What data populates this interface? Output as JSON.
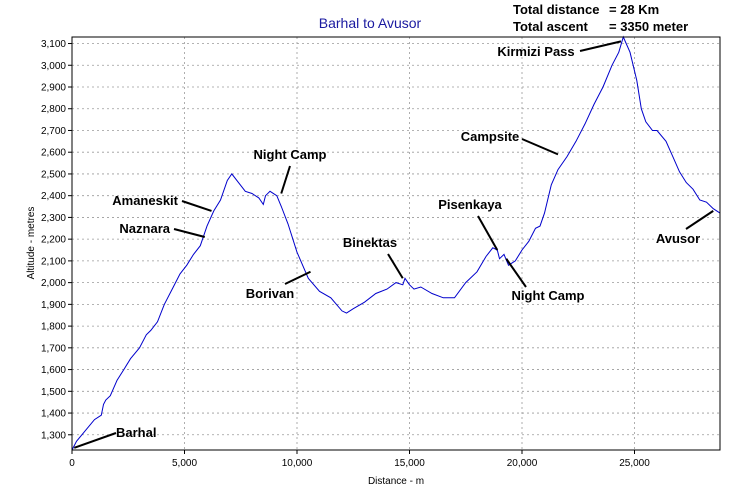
{
  "chart_data": {
    "type": "line",
    "title": "Barhal to Avusor",
    "xlabel": "Distance - m",
    "ylabel": "Altitude - metres",
    "xlim": [
      0,
      28800
    ],
    "ylim": [
      1230,
      3130
    ],
    "x_ticks": [
      0,
      5000,
      10000,
      15000,
      20000,
      25000
    ],
    "y_ticks": [
      1300,
      1400,
      1500,
      1600,
      1700,
      1800,
      1900,
      2000,
      2100,
      2200,
      2300,
      2400,
      2500,
      2600,
      2700,
      2800,
      2900,
      3000,
      3100
    ],
    "grid": true,
    "line_color": "#0000cc",
    "info": {
      "distance_label": "Total distance",
      "distance_value": "= 28 Km",
      "ascent_label": "Total ascent",
      "ascent_value": "= 3350 meter"
    },
    "series": [
      {
        "x": [
          0,
          200,
          600,
          1000,
          1300,
          1400,
          1500,
          1700,
          2000,
          2300,
          2600,
          3000,
          3300,
          3500,
          3800,
          4100,
          4500,
          4800,
          5100,
          5400,
          5700,
          6000,
          6300,
          6600,
          6900,
          7100,
          7400,
          7700,
          8000,
          8300,
          8500,
          8600,
          8800,
          9100,
          9300,
          9600,
          10000,
          10500,
          11000,
          11500,
          12000,
          12200,
          12500,
          13000,
          13500,
          14000,
          14400,
          14700,
          14800,
          15000,
          15200,
          15500,
          16000,
          16500,
          17000,
          17500,
          18000,
          18400,
          18700,
          18900,
          19000,
          19200,
          19400,
          19700,
          20000,
          20300,
          20600,
          20800,
          21000,
          21300,
          21600,
          22000,
          22400,
          22800,
          23200,
          23600,
          24000,
          24300,
          24500,
          24800,
          25100,
          25300,
          25500,
          25800,
          26000,
          26400,
          26700,
          27000,
          27300,
          27600,
          27900,
          28200,
          28500,
          28800
        ],
        "y": [
          1230,
          1270,
          1320,
          1370,
          1390,
          1440,
          1460,
          1480,
          1550,
          1600,
          1650,
          1700,
          1760,
          1780,
          1820,
          1900,
          1980,
          2040,
          2080,
          2130,
          2170,
          2260,
          2330,
          2380,
          2470,
          2500,
          2460,
          2420,
          2410,
          2390,
          2360,
          2400,
          2420,
          2400,
          2350,
          2270,
          2140,
          2020,
          1960,
          1930,
          1870,
          1860,
          1880,
          1910,
          1950,
          1970,
          2000,
          1990,
          2020,
          1990,
          1970,
          1980,
          1950,
          1930,
          1930,
          2000,
          2050,
          2120,
          2160,
          2150,
          2110,
          2130,
          2080,
          2100,
          2150,
          2190,
          2250,
          2260,
          2320,
          2450,
          2520,
          2580,
          2650,
          2730,
          2820,
          2900,
          3000,
          3060,
          3130,
          3060,
          2930,
          2800,
          2740,
          2700,
          2700,
          2650,
          2580,
          2510,
          2460,
          2430,
          2380,
          2370,
          2340,
          2320
        ]
      }
    ],
    "annotations": [
      {
        "text": "Barhal",
        "x": 100,
        "y": 1240
      },
      {
        "text": "Naznara",
        "x": 5900,
        "y": 2210
      },
      {
        "text": "Amaneskit",
        "x": 6200,
        "y": 2330
      },
      {
        "text": "Night Camp",
        "x": 9300,
        "y": 2410
      },
      {
        "text": "Borivan",
        "x": 10600,
        "y": 2050
      },
      {
        "text": "Binektas",
        "x": 14700,
        "y": 2020
      },
      {
        "text": "Pisenkaya",
        "x": 18900,
        "y": 2150
      },
      {
        "text": "Night Camp",
        "x": 19300,
        "y": 2110
      },
      {
        "text": "Campsite",
        "x": 21600,
        "y": 2590
      },
      {
        "text": "Kirmizi Pass",
        "x": 24400,
        "y": 3110
      },
      {
        "text": "Avusor",
        "x": 28500,
        "y": 2330
      }
    ]
  }
}
